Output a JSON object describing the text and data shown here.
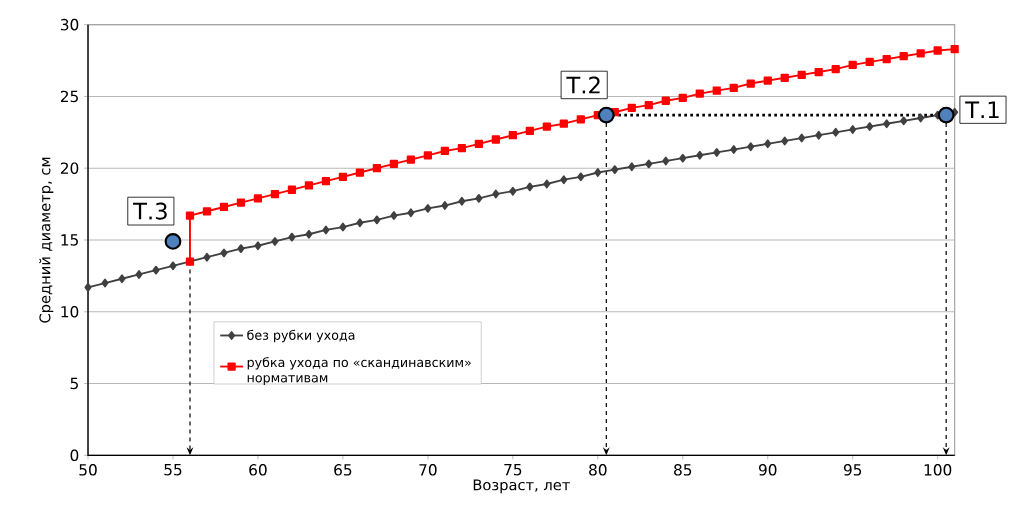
{
  "chart_data": {
    "type": "line",
    "xlabel": "Возраст, лет",
    "ylabel": "Средний диаметр, см",
    "xlim": [
      50,
      101
    ],
    "ylim": [
      0,
      30
    ],
    "xticks": [
      50,
      55,
      60,
      65,
      70,
      75,
      80,
      85,
      90,
      95,
      100
    ],
    "yticks": [
      0,
      5,
      10,
      15,
      20,
      25,
      30
    ],
    "grid": "y",
    "legend": "bottom left",
    "series": [
      {
        "name": "без рубки ухода",
        "color": "#404040",
        "marker": "diamond",
        "x": [
          50,
          51,
          52,
          53,
          54,
          55,
          56,
          57,
          58,
          59,
          60,
          61,
          62,
          63,
          64,
          65,
          66,
          67,
          68,
          69,
          70,
          71,
          72,
          73,
          74,
          75,
          76,
          77,
          78,
          79,
          80,
          81,
          82,
          83,
          84,
          85,
          86,
          87,
          88,
          89,
          90,
          91,
          92,
          93,
          94,
          95,
          96,
          97,
          98,
          99,
          100,
          101
        ],
        "values": [
          11.7,
          12.0,
          12.3,
          12.6,
          12.9,
          13.2,
          null,
          13.8,
          14.1,
          14.4,
          14.6,
          14.9,
          15.2,
          15.4,
          15.7,
          15.9,
          16.2,
          16.4,
          16.7,
          16.9,
          17.2,
          17.4,
          17.7,
          17.9,
          18.2,
          18.4,
          18.7,
          18.9,
          19.2,
          19.4,
          19.7,
          19.9,
          20.1,
          20.3,
          20.5,
          20.7,
          20.9,
          21.1,
          21.3,
          21.5,
          21.7,
          21.9,
          22.1,
          22.3,
          22.5,
          22.7,
          22.9,
          23.1,
          23.3,
          23.5,
          23.7,
          23.9
        ]
      },
      {
        "name": "рубка ухода по «скандинавским» нормативам",
        "color": "#ff0000",
        "marker": "square",
        "x": [
          56,
          56,
          57,
          58,
          59,
          60,
          61,
          62,
          63,
          64,
          65,
          66,
          67,
          68,
          69,
          70,
          71,
          72,
          73,
          74,
          75,
          76,
          77,
          78,
          79,
          80,
          81,
          82,
          83,
          84,
          85,
          86,
          87,
          88,
          89,
          90,
          91,
          92,
          93,
          94,
          95,
          96,
          97,
          98,
          99,
          100,
          101
        ],
        "values": [
          13.5,
          16.7,
          17.0,
          17.3,
          17.6,
          17.9,
          18.2,
          18.5,
          18.8,
          19.1,
          19.4,
          19.7,
          20.0,
          20.3,
          20.6,
          20.9,
          21.2,
          21.4,
          21.7,
          22.0,
          22.3,
          22.6,
          22.9,
          23.1,
          23.4,
          23.7,
          23.9,
          24.2,
          24.4,
          24.7,
          24.9,
          25.2,
          25.4,
          25.6,
          25.9,
          26.1,
          26.3,
          26.5,
          26.7,
          26.9,
          27.2,
          27.4,
          27.6,
          27.8,
          28.0,
          28.2,
          28.3
        ]
      },
      {
        "type": "line",
        "color": "#000000",
        "marker": "none",
        "line_style": "dotted",
        "x": [
          80.5,
          100.5
        ],
        "values": [
          23.7,
          23.7
        ]
      },
      {
        "type": "scatter",
        "color": "#4f81bd",
        "marker": "circle",
        "x": [
          55,
          80.5,
          100.5
        ],
        "values": [
          14.9,
          23.7,
          23.7
        ]
      }
    ],
    "ref_lines": [
      {
        "axis": "x",
        "value": 56,
        "line_style": "dashed"
      },
      {
        "axis": "x",
        "value": 80.5,
        "line_style": "dashed"
      },
      {
        "axis": "x",
        "value": 100.5,
        "line_style": "dashed"
      }
    ],
    "annotations": [
      {
        "text": "Т.3",
        "x": 55,
        "y": 14.9
      },
      {
        "text": "Т.2",
        "x": 80.5,
        "y": 23.7
      },
      {
        "text": "Т.1",
        "x": 100.5,
        "y": 23.7
      }
    ]
  }
}
